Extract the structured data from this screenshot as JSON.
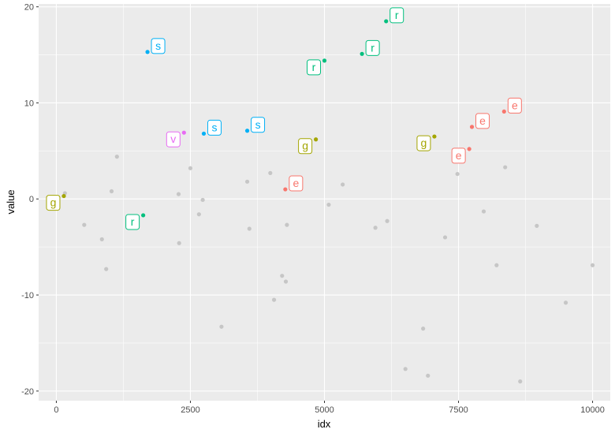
{
  "chart_data": {
    "type": "scatter",
    "xlabel": "idx",
    "ylabel": "value",
    "xlim": [
      -330,
      10330
    ],
    "ylim": [
      -21,
      20.3
    ],
    "x_ticks": [
      0,
      2500,
      5000,
      7500,
      10000
    ],
    "x_tick_labels": [
      "0",
      "2500",
      "5000",
      "7500",
      "10000"
    ],
    "y_ticks": [
      -20,
      -10,
      0,
      10,
      20
    ],
    "y_tick_labels": [
      "-20",
      "-10",
      "0",
      "10",
      "20"
    ],
    "grid": true,
    "legend": "none",
    "colors": {
      "background": "#EBEBEB",
      "grid": "#FFFFFF",
      "unlabeled_point": "#C6C6C6",
      "e": "#F8766D",
      "g": "#A3A500",
      "r": "#00BF7D",
      "s": "#00B0F6",
      "v": "#E76BF3"
    },
    "unlabeled_points": [
      {
        "x": 160,
        "y": 0.6
      },
      {
        "x": 520,
        "y": -2.7
      },
      {
        "x": 850,
        "y": -4.2
      },
      {
        "x": 930,
        "y": -7.3
      },
      {
        "x": 1030,
        "y": 0.8
      },
      {
        "x": 1130,
        "y": 4.4
      },
      {
        "x": 2280,
        "y": 0.5
      },
      {
        "x": 2290,
        "y": -4.6
      },
      {
        "x": 2500,
        "y": 3.2
      },
      {
        "x": 2660,
        "y": -1.6
      },
      {
        "x": 2730,
        "y": -0.1
      },
      {
        "x": 3080,
        "y": -13.3
      },
      {
        "x": 3560,
        "y": 1.8
      },
      {
        "x": 3600,
        "y": -3.1
      },
      {
        "x": 3990,
        "y": 2.7
      },
      {
        "x": 4060,
        "y": -10.5
      },
      {
        "x": 4210,
        "y": -8.0
      },
      {
        "x": 4280,
        "y": -8.6
      },
      {
        "x": 4300,
        "y": -2.7
      },
      {
        "x": 5080,
        "y": -0.6
      },
      {
        "x": 5340,
        "y": 1.5
      },
      {
        "x": 5950,
        "y": -3.0
      },
      {
        "x": 6170,
        "y": -2.3
      },
      {
        "x": 6510,
        "y": -17.7
      },
      {
        "x": 6840,
        "y": -13.5
      },
      {
        "x": 6930,
        "y": -18.4
      },
      {
        "x": 7250,
        "y": -4.0
      },
      {
        "x": 7480,
        "y": 2.6
      },
      {
        "x": 7970,
        "y": -1.3
      },
      {
        "x": 8210,
        "y": -6.9
      },
      {
        "x": 8370,
        "y": 3.3
      },
      {
        "x": 8650,
        "y": -19.0
      },
      {
        "x": 8960,
        "y": -2.8
      },
      {
        "x": 9500,
        "y": -10.8
      },
      {
        "x": 10000,
        "y": -6.9
      }
    ],
    "labeled_points": [
      {
        "x": 140,
        "y": 0.3,
        "label": "g",
        "group": "g",
        "label_side": "left"
      },
      {
        "x": 1620,
        "y": -1.7,
        "label": "r",
        "group": "r",
        "label_side": "left"
      },
      {
        "x": 1700,
        "y": 15.3,
        "label": "s",
        "group": "s",
        "label_side": "right"
      },
      {
        "x": 2380,
        "y": 6.9,
        "label": "v",
        "group": "v",
        "label_side": "left"
      },
      {
        "x": 2750,
        "y": 6.8,
        "label": "s",
        "group": "s",
        "label_side": "right"
      },
      {
        "x": 3560,
        "y": 7.1,
        "label": "s",
        "group": "s",
        "label_side": "right"
      },
      {
        "x": 4270,
        "y": 1.0,
        "label": "e",
        "group": "e",
        "label_side": "right"
      },
      {
        "x": 4840,
        "y": 6.2,
        "label": "g",
        "group": "g",
        "label_side": "left"
      },
      {
        "x": 5000,
        "y": 14.4,
        "label": "r",
        "group": "r",
        "label_side": "left"
      },
      {
        "x": 5700,
        "y": 15.1,
        "label": "r",
        "group": "r",
        "label_side": "right"
      },
      {
        "x": 6150,
        "y": 18.5,
        "label": "r",
        "group": "r",
        "label_side": "right"
      },
      {
        "x": 7050,
        "y": 6.5,
        "label": "g",
        "group": "g",
        "label_side": "left"
      },
      {
        "x": 7700,
        "y": 5.2,
        "label": "e",
        "group": "e",
        "label_side": "left"
      },
      {
        "x": 7750,
        "y": 7.5,
        "label": "e",
        "group": "e",
        "label_side": "right"
      },
      {
        "x": 8350,
        "y": 9.1,
        "label": "e",
        "group": "e",
        "label_side": "right"
      }
    ]
  }
}
